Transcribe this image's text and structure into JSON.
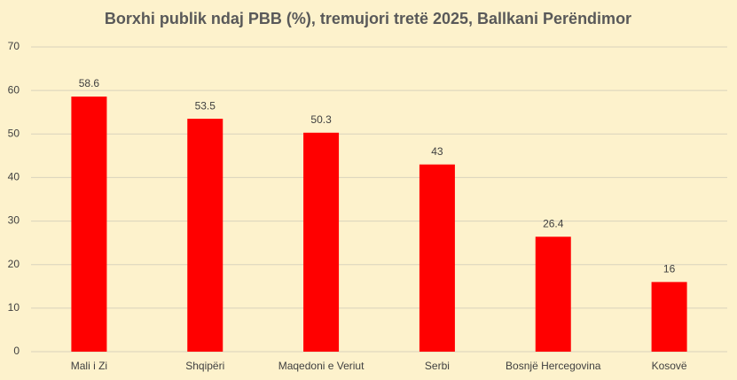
{
  "chart_data": {
    "type": "bar",
    "title": "Borxhi publik ndaj PBB (%), tremujori tretë 2025, Ballkani Perëndimor",
    "categories": [
      "Mali i Zi",
      "Shqipëri",
      "Maqedoni e Veriut",
      "Serbi",
      "Bosnjë Hercegovina",
      "Kosovë"
    ],
    "values": [
      58.6,
      53.5,
      50.3,
      43,
      26.4,
      16
    ],
    "color": "#ff0000",
    "ylim": [
      0,
      70
    ],
    "yticks": [
      0,
      10,
      20,
      30,
      40,
      50,
      60,
      70
    ],
    "grid": true
  }
}
